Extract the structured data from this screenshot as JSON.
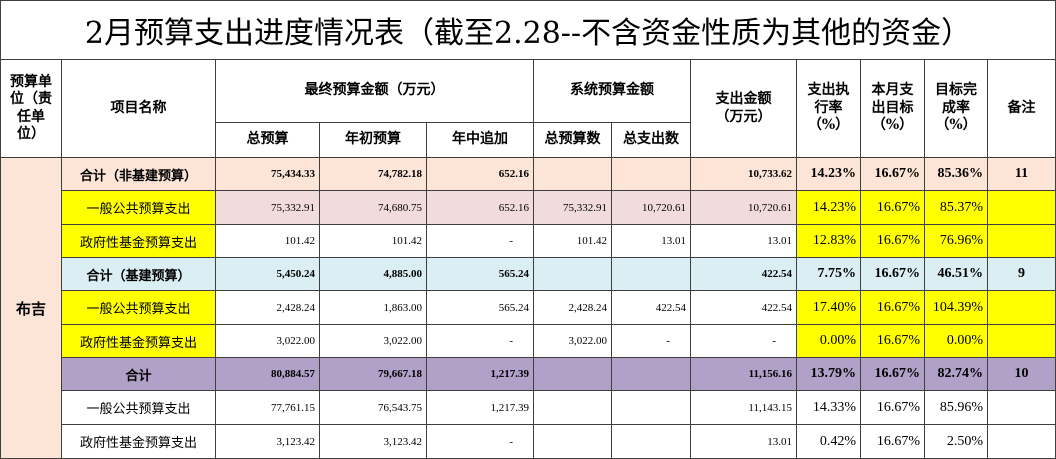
{
  "title": "2月预算支出进度情况表（截至2.28--不含资金性质为其他的资金）",
  "header": {
    "unit": "预算单位（责任单位）",
    "project": "项目名称",
    "final_budget": "最终预算金额（万元）",
    "final_total": "总预算",
    "final_initial": "年初预算",
    "final_added": "年中追加",
    "system_budget": "系统预算金额",
    "system_total": "总预算数",
    "system_spent": "总支出数",
    "spent": "支出金额（万元）",
    "exec_rate": "支出执行率（%）",
    "month_target": "本月支出目标（%）",
    "completion": "目标完成率（%）",
    "remark": "备注"
  },
  "unit_name": "布吉",
  "colors": {
    "peach": "#FCE4D6",
    "pink": "#F2DCDB",
    "yellow": "#FFFF00",
    "blue": "#DAEEF3",
    "purple": "#B1A0C7"
  },
  "rows": [
    {
      "name": "合计（非基建预算）",
      "total": "75,434.33",
      "initial": "74,782.18",
      "added": "652.16",
      "spent": "10,733.62",
      "exec_rate": "14.23%",
      "month_target": "16.67%",
      "completion": "85.36%",
      "remark": "11"
    },
    {
      "name": "一般公共预算支出",
      "total": "75,332.91",
      "initial": "74,680.75",
      "added": "652.16",
      "sys_total": "75,332.91",
      "sys_spent": "10,720.61",
      "spent": "10,720.61",
      "exec_rate": "14.23%",
      "month_target": "16.67%",
      "completion": "85.37%"
    },
    {
      "name": "政府性基金预算支出",
      "total": "101.42",
      "initial": "101.42",
      "added": "-",
      "sys_total": "101.42",
      "sys_spent": "13.01",
      "spent": "13.01",
      "exec_rate": "12.83%",
      "month_target": "16.67%",
      "completion": "76.96%"
    },
    {
      "name": "合计（基建预算）",
      "total": "5,450.24",
      "initial": "4,885.00",
      "added": "565.24",
      "spent": "422.54",
      "exec_rate": "7.75%",
      "month_target": "16.67%",
      "completion": "46.51%",
      "remark": "9"
    },
    {
      "name": "一般公共预算支出",
      "total": "2,428.24",
      "initial": "1,863.00",
      "added": "565.24",
      "sys_total": "2,428.24",
      "sys_spent": "422.54",
      "spent": "422.54",
      "exec_rate": "17.40%",
      "month_target": "16.67%",
      "completion": "104.39%"
    },
    {
      "name": "政府性基金预算支出",
      "total": "3,022.00",
      "initial": "3,022.00",
      "added": "-",
      "sys_total": "3,022.00",
      "sys_spent": "-",
      "spent": "-",
      "exec_rate": "0.00%",
      "month_target": "16.67%",
      "completion": "0.00%"
    },
    {
      "name": "合计",
      "total": "80,884.57",
      "initial": "79,667.18",
      "added": "1,217.39",
      "spent": "11,156.16",
      "exec_rate": "13.79%",
      "month_target": "16.67%",
      "completion": "82.74%",
      "remark": "10"
    },
    {
      "name": "一般公共预算支出",
      "total": "77,761.15",
      "initial": "76,543.75",
      "added": "1,217.39",
      "spent": "11,143.15",
      "exec_rate": "14.33%",
      "month_target": "16.67%",
      "completion": "85.96%"
    },
    {
      "name": "政府性基金预算支出",
      "total": "3,123.42",
      "initial": "3,123.42",
      "added": "-",
      "spent": "13.01",
      "exec_rate": "0.42%",
      "month_target": "16.67%",
      "completion": "2.50%"
    }
  ]
}
